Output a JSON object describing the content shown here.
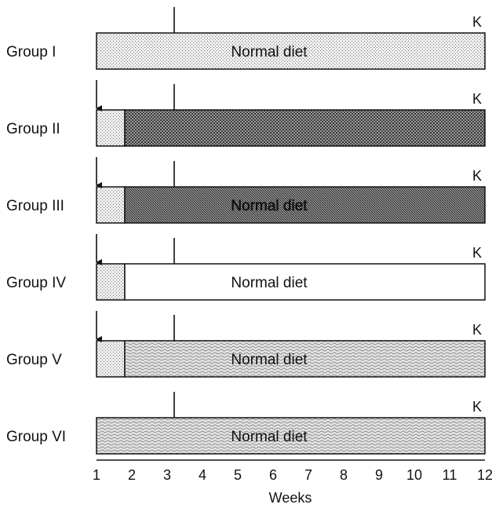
{
  "groups": [
    {
      "label": "Group I",
      "marker": "K",
      "has_arrow": false,
      "segments": [
        {
          "from": 1.0,
          "to": 12.0,
          "fill": "light-dots"
        }
      ],
      "bar_text": "Normal diet"
    },
    {
      "label": "Group II",
      "marker": "K",
      "has_arrow": true,
      "segments": [
        {
          "from": 1.0,
          "to": 1.8,
          "fill": "light-dots"
        },
        {
          "from": 1.8,
          "to": 12.0,
          "fill": "dark-dots"
        }
      ],
      "bar_text": ""
    },
    {
      "label": "Group III",
      "marker": "K",
      "has_arrow": true,
      "segments": [
        {
          "from": 1.0,
          "to": 1.8,
          "fill": "light-dots"
        },
        {
          "from": 1.8,
          "to": 12.0,
          "fill": "dark-cross"
        }
      ],
      "bar_text": "Normal diet"
    },
    {
      "label": "Group IV",
      "marker": "K",
      "has_arrow": true,
      "segments": [
        {
          "from": 1.0,
          "to": 1.8,
          "fill": "light-dots"
        },
        {
          "from": 1.8,
          "to": 12.0,
          "fill": "white"
        }
      ],
      "bar_text": "Normal diet"
    },
    {
      "label": "Group V",
      "marker": "K",
      "has_arrow": true,
      "segments": [
        {
          "from": 1.0,
          "to": 1.8,
          "fill": "light-dots"
        },
        {
          "from": 1.8,
          "to": 12.0,
          "fill": "waves"
        }
      ],
      "bar_text": "Normal diet"
    },
    {
      "label": "Group VI",
      "marker": "K",
      "has_arrow": false,
      "segments": [
        {
          "from": 1.0,
          "to": 12.0,
          "fill": "waves"
        }
      ],
      "bar_text": "Normal diet"
    }
  ],
  "week_marker": 3.2,
  "axis": {
    "ticks": [
      "1",
      "2",
      "3",
      "4",
      "5",
      "6",
      "7",
      "8",
      "9",
      "10",
      "11",
      "12"
    ],
    "title": "Weeks",
    "range": [
      1,
      12
    ]
  },
  "colors": {
    "ink": "#111111",
    "background": "#ffffff"
  }
}
